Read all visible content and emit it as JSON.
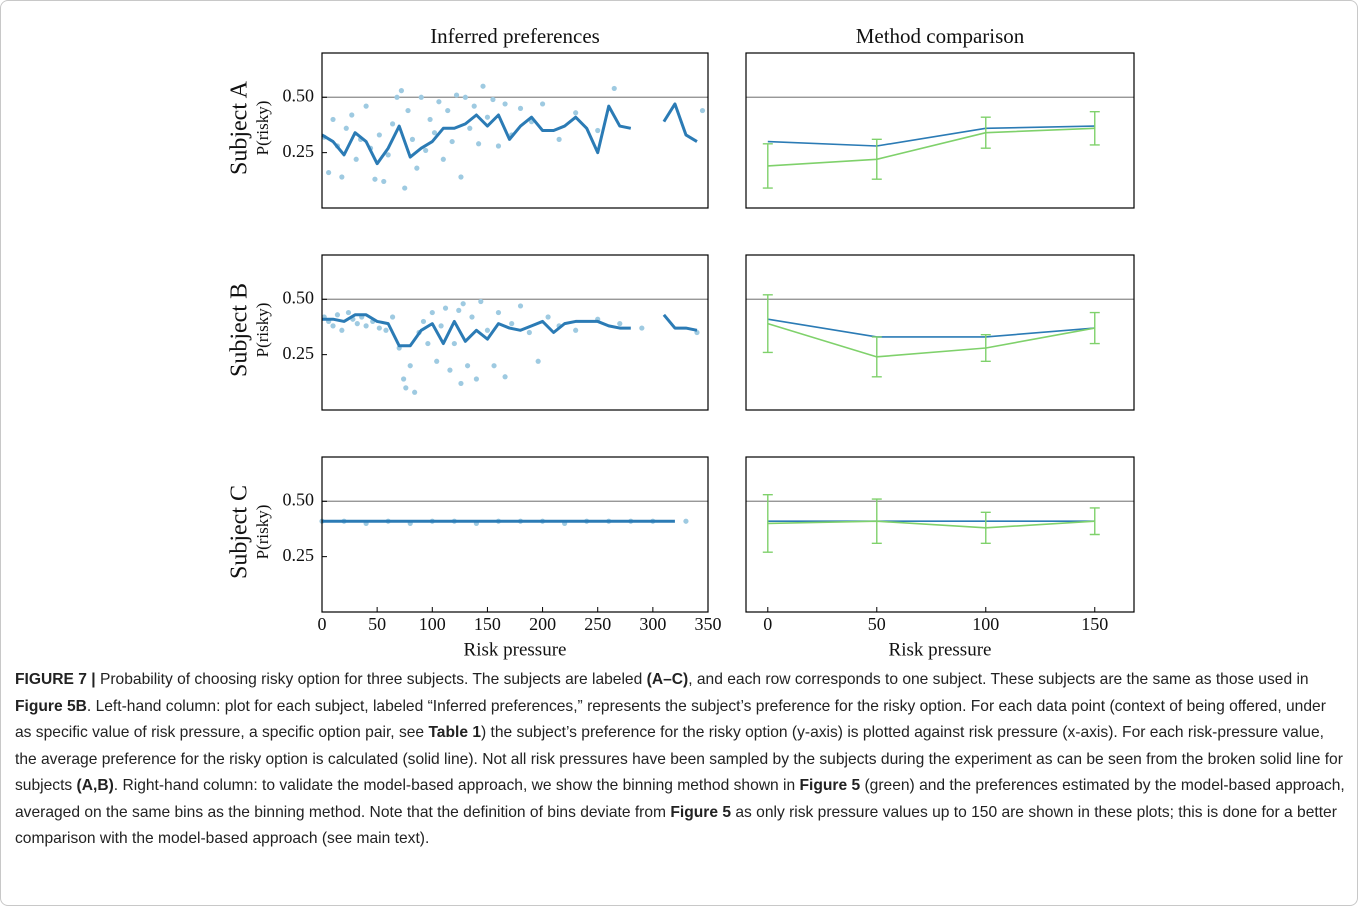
{
  "chart_data": [
    {
      "type": "scatter-line",
      "title": "Inferred preferences",
      "row_label": "Subject A",
      "ylabel": "P(risky)",
      "xlim": [
        0,
        350
      ],
      "ylim": [
        0,
        0.7
      ],
      "yticks": [
        {
          "value": 0.25,
          "label": "0.25"
        },
        {
          "value": 0.5,
          "label": "0.50"
        }
      ],
      "hline": 0.5,
      "scatter": {
        "color": "#9ecae1",
        "x": [
          2,
          6,
          10,
          14,
          18,
          22,
          27,
          31,
          35,
          40,
          44,
          48,
          52,
          56,
          60,
          64,
          68,
          72,
          75,
          78,
          82,
          86,
          90,
          94,
          98,
          102,
          106,
          110,
          114,
          118,
          122,
          126,
          130,
          134,
          138,
          142,
          146,
          150,
          155,
          160,
          166,
          172,
          180,
          190,
          200,
          215,
          230,
          250,
          265,
          345
        ],
        "y": [
          0.32,
          0.16,
          0.4,
          0.28,
          0.14,
          0.36,
          0.42,
          0.22,
          0.31,
          0.46,
          0.27,
          0.13,
          0.33,
          0.12,
          0.24,
          0.38,
          0.5,
          0.53,
          0.09,
          0.44,
          0.31,
          0.18,
          0.5,
          0.26,
          0.4,
          0.34,
          0.48,
          0.22,
          0.44,
          0.3,
          0.51,
          0.14,
          0.5,
          0.36,
          0.46,
          0.29,
          0.55,
          0.41,
          0.49,
          0.28,
          0.47,
          0.33,
          0.45,
          0.39,
          0.47,
          0.31,
          0.43,
          0.35,
          0.54,
          0.44
        ]
      },
      "series": [
        {
          "color": "#2b7bb5",
          "x": [
            0,
            10,
            20,
            30,
            40,
            50,
            60,
            70,
            80,
            90,
            100,
            110,
            120,
            130,
            140,
            150,
            160,
            170,
            180,
            190,
            200,
            210,
            220,
            230,
            240,
            250,
            260,
            270,
            280,
            290,
            300,
            310,
            320,
            330,
            340
          ],
          "values": [
            0.33,
            0.3,
            0.24,
            0.34,
            0.3,
            0.2,
            0.27,
            0.37,
            0.23,
            0.27,
            0.3,
            0.36,
            0.36,
            0.38,
            0.42,
            0.37,
            0.42,
            0.31,
            0.37,
            0.41,
            0.35,
            0.35,
            0.37,
            0.41,
            0.36,
            0.25,
            0.46,
            0.37,
            0.36,
            null,
            null,
            0.39,
            0.47,
            0.33,
            0.3
          ]
        }
      ]
    },
    {
      "type": "errorbar-line",
      "title": "Method comparison",
      "xlim": [
        -10,
        168
      ],
      "ylim": [
        0,
        0.7
      ],
      "hline": 0.5,
      "series": [
        {
          "color": "#2b7bb5",
          "x": [
            0,
            50,
            100,
            150
          ],
          "values": [
            0.3,
            0.28,
            0.36,
            0.37
          ]
        },
        {
          "color": "#7fd16b",
          "x": [
            0,
            50,
            100,
            150
          ],
          "values": [
            0.19,
            0.22,
            0.34,
            0.36
          ],
          "errors": [
            0.1,
            0.09,
            0.07,
            0.075
          ]
        }
      ]
    },
    {
      "type": "scatter-line",
      "row_label": "Subject B",
      "ylabel": "P(risky)",
      "xlim": [
        0,
        350
      ],
      "ylim": [
        0,
        0.7
      ],
      "yticks": [
        {
          "value": 0.25,
          "label": "0.25"
        },
        {
          "value": 0.5,
          "label": "0.50"
        }
      ],
      "hline": 0.5,
      "scatter": {
        "color": "#9ecae1",
        "x": [
          2,
          6,
          10,
          14,
          18,
          24,
          28,
          32,
          36,
          40,
          46,
          52,
          58,
          64,
          70,
          74,
          76,
          80,
          84,
          88,
          92,
          96,
          100,
          104,
          108,
          112,
          116,
          120,
          124,
          126,
          128,
          132,
          136,
          140,
          144,
          150,
          156,
          160,
          166,
          172,
          180,
          188,
          196,
          205,
          215,
          230,
          250,
          270,
          290,
          340
        ],
        "y": [
          0.42,
          0.4,
          0.38,
          0.43,
          0.36,
          0.44,
          0.41,
          0.39,
          0.42,
          0.38,
          0.4,
          0.37,
          0.36,
          0.42,
          0.28,
          0.14,
          0.1,
          0.2,
          0.08,
          0.35,
          0.4,
          0.3,
          0.44,
          0.22,
          0.38,
          0.46,
          0.18,
          0.3,
          0.45,
          0.12,
          0.48,
          0.2,
          0.42,
          0.14,
          0.49,
          0.36,
          0.2,
          0.44,
          0.15,
          0.39,
          0.47,
          0.35,
          0.22,
          0.42,
          0.38,
          0.36,
          0.41,
          0.39,
          0.37,
          0.35
        ]
      },
      "series": [
        {
          "color": "#2b7bb5",
          "x": [
            0,
            10,
            20,
            30,
            40,
            50,
            60,
            70,
            80,
            90,
            100,
            110,
            120,
            130,
            140,
            150,
            160,
            170,
            180,
            190,
            200,
            210,
            220,
            230,
            240,
            250,
            260,
            270,
            280,
            290,
            300,
            310,
            320,
            330,
            340
          ],
          "values": [
            0.41,
            0.41,
            0.4,
            0.43,
            0.43,
            0.4,
            0.39,
            0.29,
            0.29,
            0.36,
            0.39,
            0.3,
            0.4,
            0.31,
            0.36,
            0.32,
            0.39,
            0.37,
            0.36,
            0.38,
            0.4,
            0.35,
            0.39,
            0.4,
            0.4,
            0.4,
            0.38,
            0.37,
            0.37,
            null,
            null,
            0.43,
            0.37,
            0.37,
            0.36
          ]
        }
      ]
    },
    {
      "type": "errorbar-line",
      "xlim": [
        -10,
        168
      ],
      "ylim": [
        0,
        0.7
      ],
      "hline": 0.5,
      "series": [
        {
          "color": "#2b7bb5",
          "x": [
            0,
            50,
            100,
            150
          ],
          "values": [
            0.41,
            0.33,
            0.33,
            0.37
          ]
        },
        {
          "color": "#7fd16b",
          "x": [
            0,
            50,
            100,
            150
          ],
          "values": [
            0.39,
            0.24,
            0.28,
            0.37
          ],
          "errors": [
            0.13,
            0.09,
            0.06,
            0.07
          ]
        }
      ]
    },
    {
      "type": "scatter-line",
      "row_label": "Subject C",
      "ylabel": "P(risky)",
      "xlabel": "Risk pressure",
      "xlim": [
        0,
        350
      ],
      "ylim": [
        0,
        0.7
      ],
      "xticks": [
        0,
        50,
        100,
        150,
        200,
        250,
        300,
        350
      ],
      "yticks": [
        {
          "value": 0.25,
          "label": "0.25"
        },
        {
          "value": 0.5,
          "label": "0.50"
        }
      ],
      "hline": 0.5,
      "scatter": {
        "color": "#9ecae1",
        "x": [
          0,
          20,
          40,
          60,
          80,
          100,
          120,
          140,
          160,
          180,
          200,
          220,
          240,
          260,
          280,
          300,
          330
        ],
        "y": [
          0.41,
          0.41,
          0.4,
          0.41,
          0.4,
          0.41,
          0.41,
          0.4,
          0.41,
          0.41,
          0.41,
          0.4,
          0.41,
          0.41,
          0.41,
          0.41,
          0.41
        ]
      },
      "series": [
        {
          "color": "#2b7bb5",
          "x": [
            0,
            40,
            80,
            120,
            160,
            200,
            240,
            280,
            320
          ],
          "values": [
            0.41,
            0.41,
            0.41,
            0.41,
            0.41,
            0.41,
            0.41,
            0.41,
            0.41
          ]
        }
      ]
    },
    {
      "type": "errorbar-line",
      "xlabel": "Risk pressure",
      "xlim": [
        -10,
        168
      ],
      "ylim": [
        0,
        0.7
      ],
      "xticks": [
        0,
        50,
        100,
        150
      ],
      "hline": 0.5,
      "series": [
        {
          "color": "#2b7bb5",
          "x": [
            0,
            50,
            100,
            150
          ],
          "values": [
            0.41,
            0.41,
            0.41,
            0.41
          ]
        },
        {
          "color": "#7fd16b",
          "x": [
            0,
            50,
            100,
            150
          ],
          "values": [
            0.4,
            0.41,
            0.38,
            0.41
          ],
          "errors": [
            0.13,
            0.1,
            0.07,
            0.06
          ]
        }
      ]
    }
  ],
  "caption": [
    {
      "text": "FIGURE 7 |",
      "bold": true
    },
    {
      "text": " Probability of choosing risky option for three subjects. The subjects are labeled ",
      "bold": false
    },
    {
      "text": "(A–C)",
      "bold": true
    },
    {
      "text": ", and each row corresponds to one subject. These subjects are the same as those used in ",
      "bold": false
    },
    {
      "text": "Figure 5B",
      "bold": true
    },
    {
      "text": ". Left-hand column: plot for each subject, labeled “Inferred preferences,” represents the subject’s preference for the risky option. For each data point (context of being offered, under as specific value of risk pressure, a specific option pair, see ",
      "bold": false
    },
    {
      "text": "Table 1",
      "bold": true
    },
    {
      "text": ") the subject’s preference for the risky option (y-axis) is plotted against risk pressure (x-axis). For each risk-pressure value, the average preference for the risky option is calculated (solid line). Not all risk pressures have been sampled by the subjects during the experiment as can be seen from the broken solid line for subjects ",
      "bold": false
    },
    {
      "text": "(A,B)",
      "bold": true
    },
    {
      "text": ". Right-hand column: to validate the model-based approach, we show the binning method shown in ",
      "bold": false
    },
    {
      "text": "Figure 5",
      "bold": true
    },
    {
      "text": " (green) and the preferences estimated by the model-based approach, averaged on the same bins as the binning method. Note that the definition of bins deviate from ",
      "bold": false
    },
    {
      "text": "Figure 5",
      "bold": true
    },
    {
      "text": " as only risk pressure values up to 150 are shown in these plots; this is done for a better comparison with the model-based approach (see main text).",
      "bold": false
    }
  ]
}
